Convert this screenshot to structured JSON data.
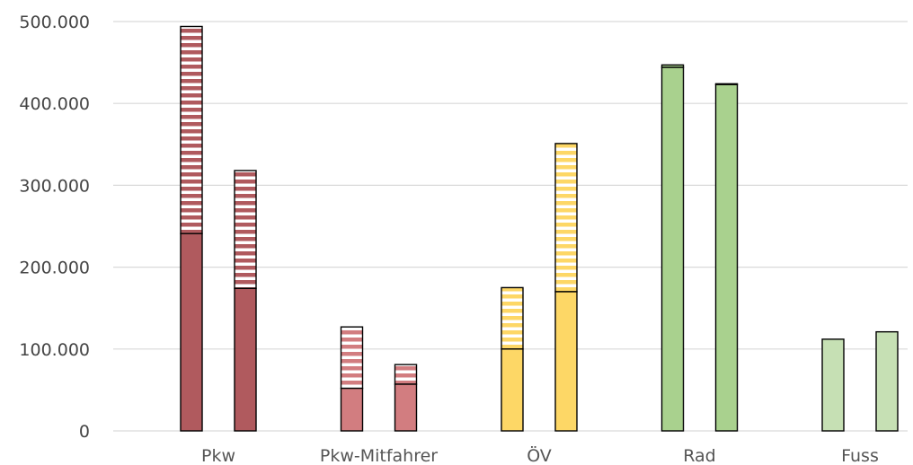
{
  "chart_data": {
    "type": "bar",
    "stacked": true,
    "grid": true,
    "ylim": [
      0,
      500000
    ],
    "yticks": [
      0,
      100000,
      200000,
      300000,
      400000,
      500000
    ],
    "ytick_labels": [
      "0",
      "100.000",
      "200.000",
      "300.000",
      "400.000",
      "500.000"
    ],
    "categories": [
      "Pkw",
      "Pkw-Mitfahrer",
      "ÖV",
      "Rad",
      "Fuss"
    ],
    "bars_per_category": 2,
    "bars": [
      {
        "category": "Pkw",
        "solid": 241000,
        "striped": 253000,
        "color": "#b05a5e"
      },
      {
        "category": "Pkw",
        "solid": 174000,
        "striped": 144000,
        "color": "#b05a5e"
      },
      {
        "category": "Pkw-Mitfahrer",
        "solid": 52000,
        "striped": 75000,
        "color": "#d27d80"
      },
      {
        "category": "Pkw-Mitfahrer",
        "solid": 57000,
        "striped": 24000,
        "color": "#d27d80"
      },
      {
        "category": "ÖV",
        "solid": 100000,
        "striped": 75000,
        "color": "#fdd766"
      },
      {
        "category": "ÖV",
        "solid": 170000,
        "striped": 181000,
        "color": "#fdd766"
      },
      {
        "category": "Rad",
        "solid": 444000,
        "striped": 3000,
        "color": "#a9d18e"
      },
      {
        "category": "Rad",
        "solid": 423000,
        "striped": 1000,
        "color": "#a9d18e"
      },
      {
        "category": "Fuss",
        "solid": 112000,
        "striped": 0,
        "color": "#c6e0b4"
      },
      {
        "category": "Fuss",
        "solid": 121000,
        "striped": 0,
        "color": "#c6e0b4"
      }
    ],
    "colors": {
      "grid": "#d9d9d9",
      "outline": "#000000",
      "stripe_gap": "#ffffff"
    }
  }
}
